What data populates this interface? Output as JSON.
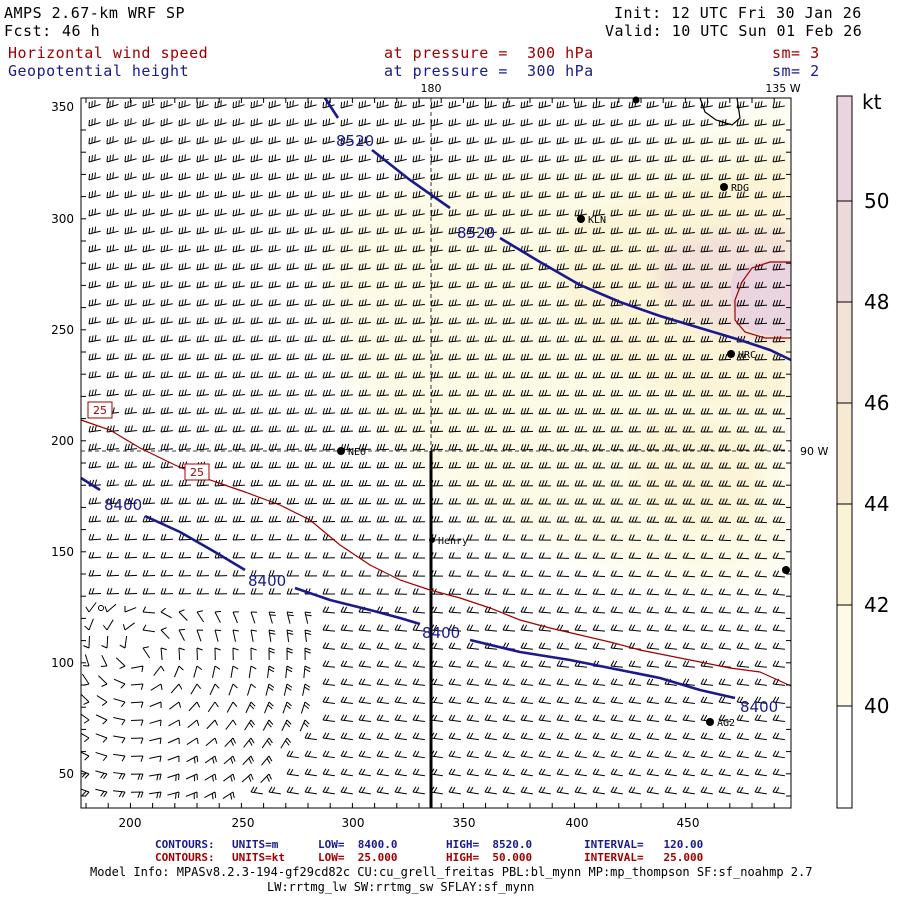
{
  "header": {
    "model": "AMPS 2.67-km WRF SP",
    "fcst_label": "Fcst:",
    "fcst_value": "46 h",
    "init": "Init: 12 UTC Fri 30 Jan 26",
    "valid": "Valid: 10 UTC Sun 01 Feb 26",
    "field1": "Horizontal wind speed",
    "field2": "Geopotential height",
    "level1": "at pressure =  300 hPa",
    "level2": "at pressure =  300 hPa",
    "sm1": "sm= 3",
    "sm2": "sm= 2"
  },
  "map": {
    "x_ticks": [
      "200",
      "250",
      "300",
      "350",
      "400",
      "450"
    ],
    "y_ticks": [
      "350",
      "300",
      "250",
      "200",
      "150",
      "100",
      "50"
    ],
    "meridian_labels": [
      "180",
      "135 W",
      "90 W"
    ],
    "stations": [
      "KLN",
      "RDG",
      "HRC",
      "NEO",
      "Henry",
      "AG2"
    ],
    "height_contours": [
      "8520",
      "8520",
      "8400",
      "8400",
      "8400",
      "8400"
    ],
    "speed_contours": [
      "25",
      "25"
    ],
    "colors": {
      "height_contour": "#1a1a8c",
      "speed_contour": "#a00000",
      "shade_40": "#fdfbe6",
      "shade_42": "#fbf4d6",
      "shade_46": "#f3e0d8",
      "shade_48": "#ead4df"
    }
  },
  "colorbar": {
    "unit": "kt",
    "labels": [
      "50",
      "48",
      "46",
      "44",
      "42",
      "40"
    ]
  },
  "footer": {
    "c1_label": "CONTOURS:",
    "c1_units": "UNITS=m",
    "c1_low": "LOW=  8400.0",
    "c1_high": "HIGH=  8520.0",
    "c1_int": "INTERVAL=   120.00",
    "c2_label": "CONTOURS:",
    "c2_units": "UNITS=kt",
    "c2_low": "LOW=  25.000",
    "c2_high": "HIGH=  50.000",
    "c2_int": "INTERVAL=   25.000",
    "model_info_1": "Model Info: MPASv8.2.3-194-gf29cd82c CU:cu_grell_freitas PBL:bl_mynn MP:mp_thompson SF:sf_noahmp 2.7",
    "model_info_2": "LW:rrtmg_lw SW:rrtmg_sw SFLAY:sf_mynn"
  }
}
